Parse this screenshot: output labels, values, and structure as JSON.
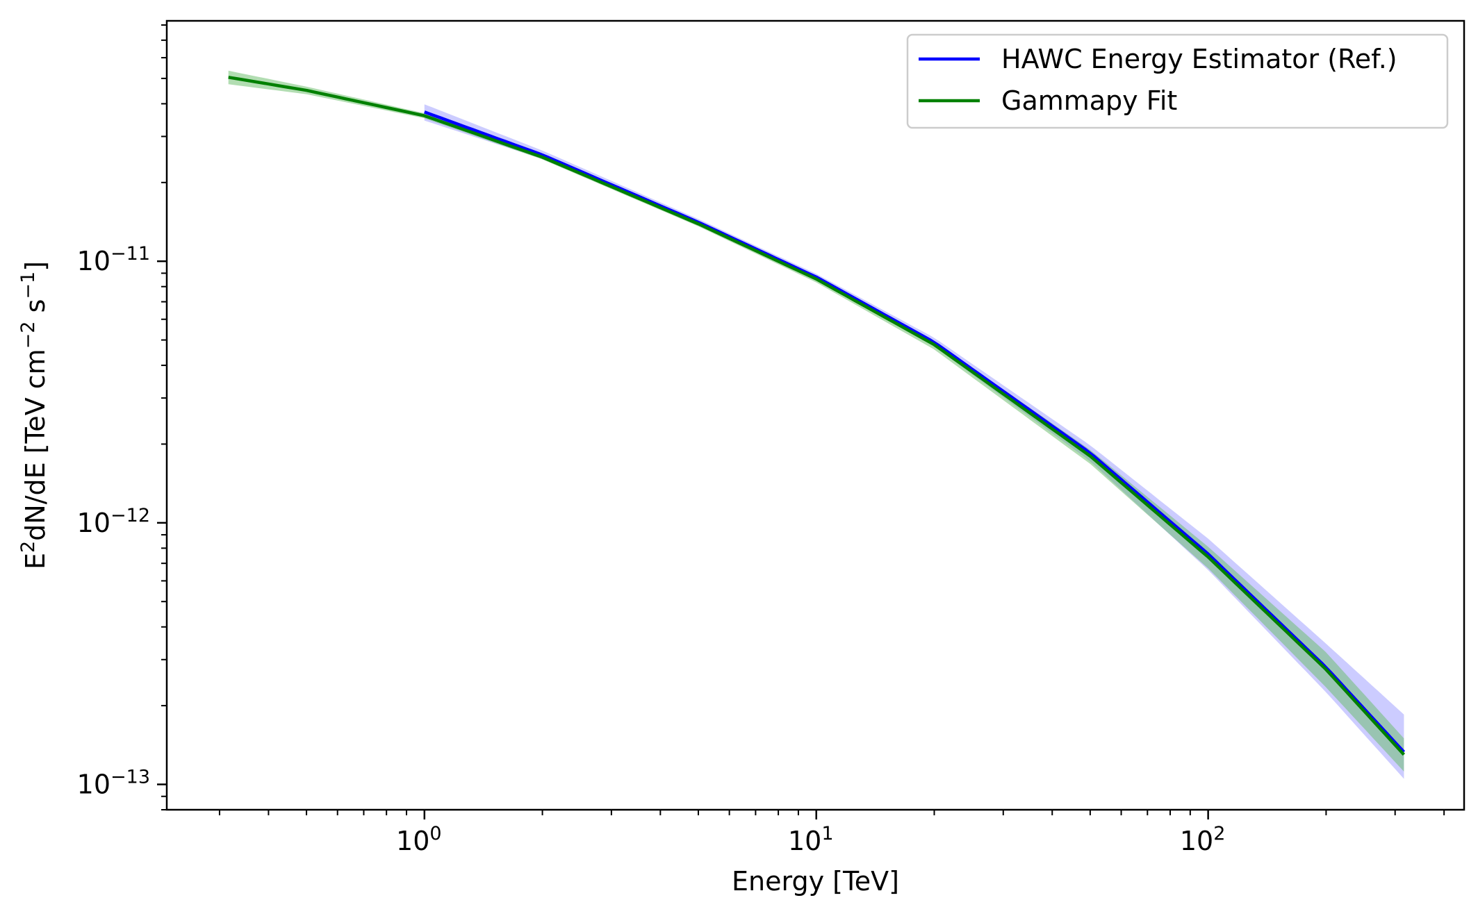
{
  "chart_data": {
    "type": "line",
    "title": "",
    "xlabel": "Energy [TeV]",
    "ylabel": {
      "base": "E",
      "base_sup": "2",
      "mid": "dN/dE [TeV cm",
      "mid_sup": "−2",
      "gap": " s",
      "end_sup": "−1",
      "end": "]"
    },
    "x_scale": "log",
    "y_scale": "log",
    "xlim": [
      0.22,
      450
    ],
    "ylim": [
      8e-14,
      8.3e-11
    ],
    "x_ticks": [
      {
        "value": 1,
        "base": "10",
        "exp": "0"
      },
      {
        "value": 10,
        "base": "10",
        "exp": "1"
      },
      {
        "value": 100,
        "base": "10",
        "exp": "2"
      }
    ],
    "y_ticks": [
      {
        "value": 1e-13,
        "base": "10",
        "exp": "−13"
      },
      {
        "value": 1e-12,
        "base": "10",
        "exp": "−12"
      },
      {
        "value": 1e-11,
        "base": "10",
        "exp": "−11"
      }
    ],
    "grid": false,
    "legend_position": "top-right",
    "series": [
      {
        "name": "HAWC Energy Estimator (Ref.)",
        "color": "#0000ff",
        "band_color": "#9999ff",
        "x": [
          1.0,
          2.0,
          5.0,
          10.0,
          20.0,
          50.0,
          100.0,
          200.0,
          316.0
        ],
        "y": [
          3.72e-11,
          2.55e-11,
          1.41e-11,
          8.7e-12,
          4.9e-12,
          1.85e-12,
          7.6e-13,
          2.8e-13,
          1.33e-13
        ],
        "y_low": [
          3.45e-11,
          2.46e-11,
          1.37e-11,
          8.45e-12,
          4.72e-12,
          1.72e-12,
          6.6e-13,
          2.25e-13,
          1.05e-13
        ],
        "y_high": [
          3.98e-11,
          2.65e-11,
          1.45e-11,
          8.95e-12,
          5.1e-12,
          1.98e-12,
          8.7e-13,
          3.45e-13,
          1.85e-13
        ]
      },
      {
        "name": "Gammapy Fit",
        "color": "#008000",
        "band_color": "#66bb66",
        "x": [
          0.316,
          0.5,
          1.0,
          2.0,
          5.0,
          10.0,
          20.0,
          50.0,
          100.0,
          200.0,
          316.0
        ],
        "y": [
          5.05e-11,
          4.5e-11,
          3.6e-11,
          2.5e-11,
          1.39e-11,
          8.55e-12,
          4.8e-12,
          1.8e-12,
          7.4e-13,
          2.75e-13,
          1.3e-13
        ],
        "y_low": [
          4.75e-11,
          4.35e-11,
          3.52e-11,
          2.45e-11,
          1.36e-11,
          8.3e-12,
          4.6e-12,
          1.68e-12,
          6.7e-13,
          2.35e-13,
          1.12e-13
        ],
        "y_high": [
          5.35e-11,
          4.65e-11,
          3.68e-11,
          2.55e-11,
          1.42e-11,
          8.8e-12,
          4.95e-12,
          1.9e-12,
          8.1e-13,
          3.2e-13,
          1.5e-13
        ]
      }
    ]
  }
}
